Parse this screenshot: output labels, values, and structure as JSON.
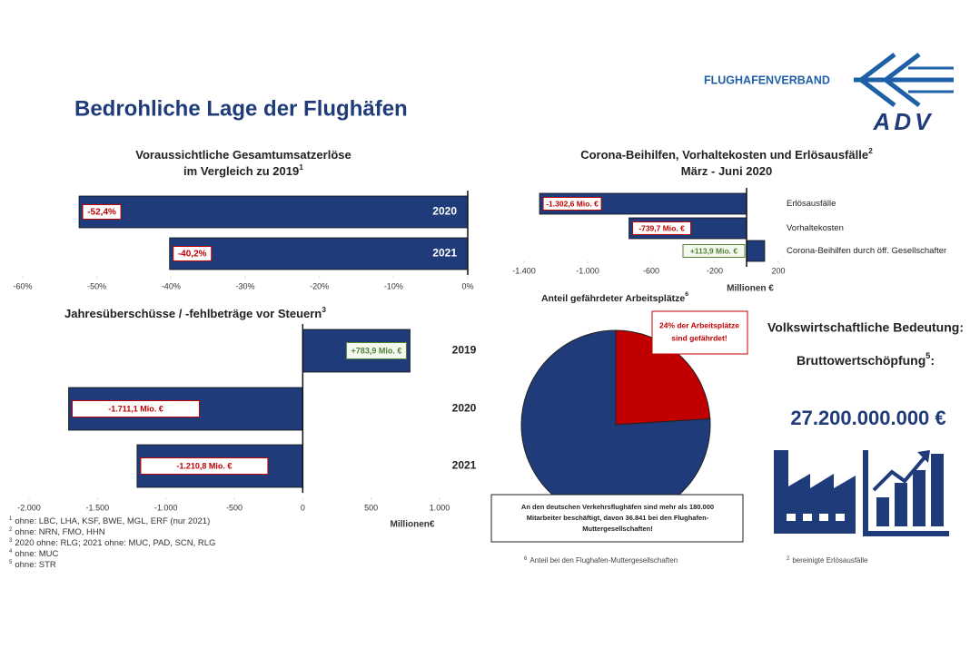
{
  "title": "Bedrohliche Lage der Flughäfen",
  "logo": {
    "name": "FLUGHAFENVERBAND",
    "abbr": "ADV"
  },
  "chart_data": [
    {
      "type": "hbar",
      "title": "Voraussichtliche Gesamtumsatzerlöse",
      "subtitle": "im Vergleich zu 2019",
      "subtitle_note": "1",
      "categories": [
        "2020",
        "2021"
      ],
      "values": [
        -52.4,
        -40.2
      ],
      "value_labels": [
        "-52,4%",
        "-40,2%"
      ],
      "color": "#1f3b7a",
      "xlim": [
        -60,
        0
      ],
      "xticks": [
        {
          "value": -60,
          "label": "-60%"
        },
        {
          "value": -50,
          "label": "-50%"
        },
        {
          "value": -40,
          "label": "-40%"
        },
        {
          "value": -30,
          "label": "-30%"
        },
        {
          "value": -20,
          "label": "-20%"
        },
        {
          "value": -10,
          "label": "-10%"
        },
        {
          "value": 0,
          "label": "0%"
        }
      ]
    },
    {
      "type": "hbar",
      "title": "Corona-Beihilfen, Vorhaltekosten und Erlösausfälle",
      "title_note": "2",
      "subtitle": "März - Juni 2020",
      "categories": [
        "Erlösausfälle",
        "Vorhaltekosten",
        "Corona-Beihilfen durch öff. Gesellschafter"
      ],
      "values": [
        -1302.6,
        -739.7,
        113.9
      ],
      "value_labels": [
        "-1.302,6 Mio. €",
        "-739,7 Mio. €",
        "+113,9 Mio. €"
      ],
      "color": "#1f3b7a",
      "xlabel": "Millionen €",
      "xlim": [
        -1400,
        200
      ],
      "xticks": [
        {
          "value": -1400,
          "label": "-1.400"
        },
        {
          "value": -1000,
          "label": "-1.000"
        },
        -600,
        -200,
        200
      ]
    },
    {
      "type": "hbar",
      "title": "Jahresüberschüsse / -fehlbeträge vor Steuern",
      "title_note": "3",
      "categories": [
        "2019",
        "2020",
        "2021"
      ],
      "values": [
        783.9,
        -1711.1,
        -1210.8
      ],
      "value_labels": [
        "+783,9 Mio. €",
        "-1.711,1 Mio. €",
        "-1.210,8 Mio. €"
      ],
      "color": "#1f3b7a",
      "xlabel": "Millionen€",
      "xlim": [
        -2000,
        1000
      ],
      "xticks": [
        {
          "value": -2000,
          "label": "-2.000"
        },
        {
          "value": -1500,
          "label": "-1.500"
        },
        {
          "value": -1000,
          "label": "-1.000"
        },
        -500,
        0,
        500,
        {
          "value": 1000,
          "label": "1.000"
        }
      ]
    },
    {
      "type": "pie",
      "title": "Anteil gefährdeter Arbeitsplätze",
      "title_note": "6",
      "values": [
        24,
        76
      ],
      "colors": [
        "#c00000",
        "#1f3b7a"
      ],
      "annotation": [
        "24% der Arbeitsplätze",
        "sind gefährdet!"
      ],
      "caption": [
        "An den deutschen Verkehrsflughäfen  sind mehr als 180.000",
        "Mitarbeiter beschäftigt,  davon  36.841 bei den Flughafen-",
        "Muttergesellschaften!"
      ],
      "footnote": {
        "mark": "6",
        "text": "Anteil bei den Flughafen-Muttergesellschaften"
      }
    }
  ],
  "economy": {
    "title": "Volkswirtschaftliche Bedeutung:",
    "label": "Bruttowertschöpfung",
    "label_note": "5",
    "label_end": ":",
    "value": "27.200.000.000 €",
    "footnote": {
      "mark": "2",
      "text": "bereinigte Erlösausfälle"
    }
  },
  "footnotes": [
    {
      "mark": "1",
      "text": "ohne: LBC, LHA, KSF, BWE, MGL, ERF (nur 2021)"
    },
    {
      "mark": "2",
      "text": "ohne: NRN, FMO, HHN"
    },
    {
      "mark": "3",
      "text": "2020 ohne: RLG; 2021 ohne: MUC, PAD, SCN, RLG"
    },
    {
      "mark": "4",
      "text": "ohne: MUC"
    },
    {
      "mark": "5",
      "text": "ohne: STR"
    }
  ]
}
